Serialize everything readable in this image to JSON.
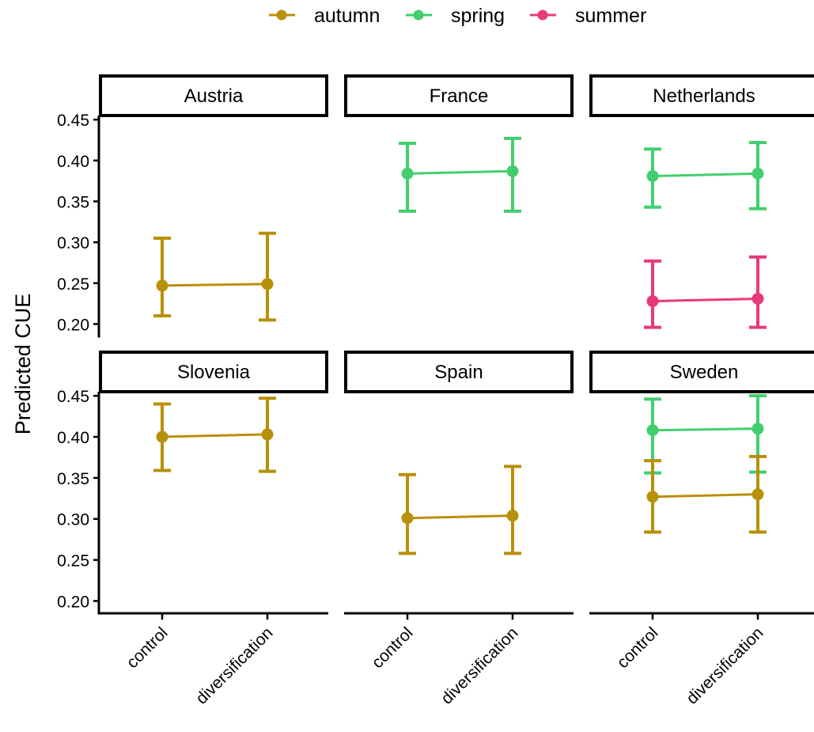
{
  "chart_data": {
    "type": "scatter",
    "ylabel": "Predicted CUE",
    "xlabel": "",
    "ylim": [
      0.185,
      0.455
    ],
    "yticks": [
      "0.20",
      "0.25",
      "0.30",
      "0.35",
      "0.40",
      "0.45"
    ],
    "categories": [
      "control",
      "diversification"
    ],
    "legend": {
      "position": "top",
      "items": [
        {
          "name": "autumn",
          "color": "#B8900A"
        },
        {
          "name": "spring",
          "color": "#43CE6E"
        },
        {
          "name": "summer",
          "color": "#E8397B"
        }
      ]
    },
    "facets": [
      {
        "title": "Austria",
        "series": [
          {
            "name": "autumn",
            "points": [
              {
                "x": "control",
                "y": 0.247,
                "lower": 0.21,
                "upper": 0.305
              },
              {
                "x": "diversification",
                "y": 0.249,
                "lower": 0.205,
                "upper": 0.311
              }
            ]
          }
        ]
      },
      {
        "title": "France",
        "series": [
          {
            "name": "spring",
            "points": [
              {
                "x": "control",
                "y": 0.384,
                "lower": 0.338,
                "upper": 0.421
              },
              {
                "x": "diversification",
                "y": 0.387,
                "lower": 0.338,
                "upper": 0.427
              }
            ]
          }
        ]
      },
      {
        "title": "Netherlands",
        "series": [
          {
            "name": "spring",
            "points": [
              {
                "x": "control",
                "y": 0.381,
                "lower": 0.343,
                "upper": 0.414
              },
              {
                "x": "diversification",
                "y": 0.384,
                "lower": 0.341,
                "upper": 0.422
              }
            ]
          },
          {
            "name": "summer",
            "points": [
              {
                "x": "control",
                "y": 0.228,
                "lower": 0.196,
                "upper": 0.277
              },
              {
                "x": "diversification",
                "y": 0.231,
                "lower": 0.196,
                "upper": 0.282
              }
            ]
          }
        ]
      },
      {
        "title": "Slovenia",
        "series": [
          {
            "name": "autumn",
            "points": [
              {
                "x": "control",
                "y": 0.4,
                "lower": 0.359,
                "upper": 0.44
              },
              {
                "x": "diversification",
                "y": 0.403,
                "lower": 0.358,
                "upper": 0.447
              }
            ]
          }
        ]
      },
      {
        "title": "Spain",
        "series": [
          {
            "name": "autumn",
            "points": [
              {
                "x": "control",
                "y": 0.301,
                "lower": 0.258,
                "upper": 0.354
              },
              {
                "x": "diversification",
                "y": 0.304,
                "lower": 0.258,
                "upper": 0.364
              }
            ]
          }
        ]
      },
      {
        "title": "Sweden",
        "series": [
          {
            "name": "spring",
            "points": [
              {
                "x": "control",
                "y": 0.408,
                "lower": 0.356,
                "upper": 0.446
              },
              {
                "x": "diversification",
                "y": 0.41,
                "lower": 0.357,
                "upper": 0.45
              }
            ]
          },
          {
            "name": "autumn",
            "points": [
              {
                "x": "control",
                "y": 0.327,
                "lower": 0.284,
                "upper": 0.371
              },
              {
                "x": "diversification",
                "y": 0.33,
                "lower": 0.284,
                "upper": 0.376
              }
            ]
          }
        ]
      }
    ]
  }
}
